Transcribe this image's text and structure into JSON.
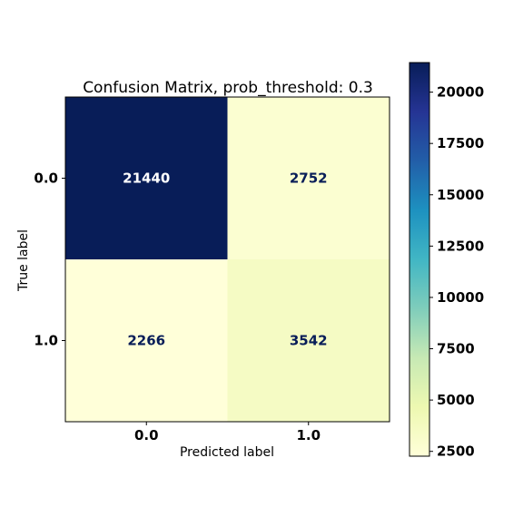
{
  "chart_data": {
    "type": "heatmap",
    "title": "Confusion Matrix, prob_threshold: 0.3",
    "xlabel": "Predicted label",
    "ylabel": "True label",
    "x_categories": [
      "0.0",
      "1.0"
    ],
    "y_categories": [
      "0.0",
      "1.0"
    ],
    "matrix": [
      [
        21440,
        2752
      ],
      [
        2266,
        3542
      ]
    ],
    "colormap": "YlGnBu",
    "colorbar": {
      "range": [
        2266,
        21440
      ],
      "ticks": [
        2500,
        5000,
        7500,
        10000,
        12500,
        15000,
        17500,
        20000
      ],
      "tick_labels": [
        "2500",
        "5000",
        "7500",
        "10000",
        "12500",
        "15000",
        "17500",
        "20000"
      ]
    },
    "grid": false
  }
}
